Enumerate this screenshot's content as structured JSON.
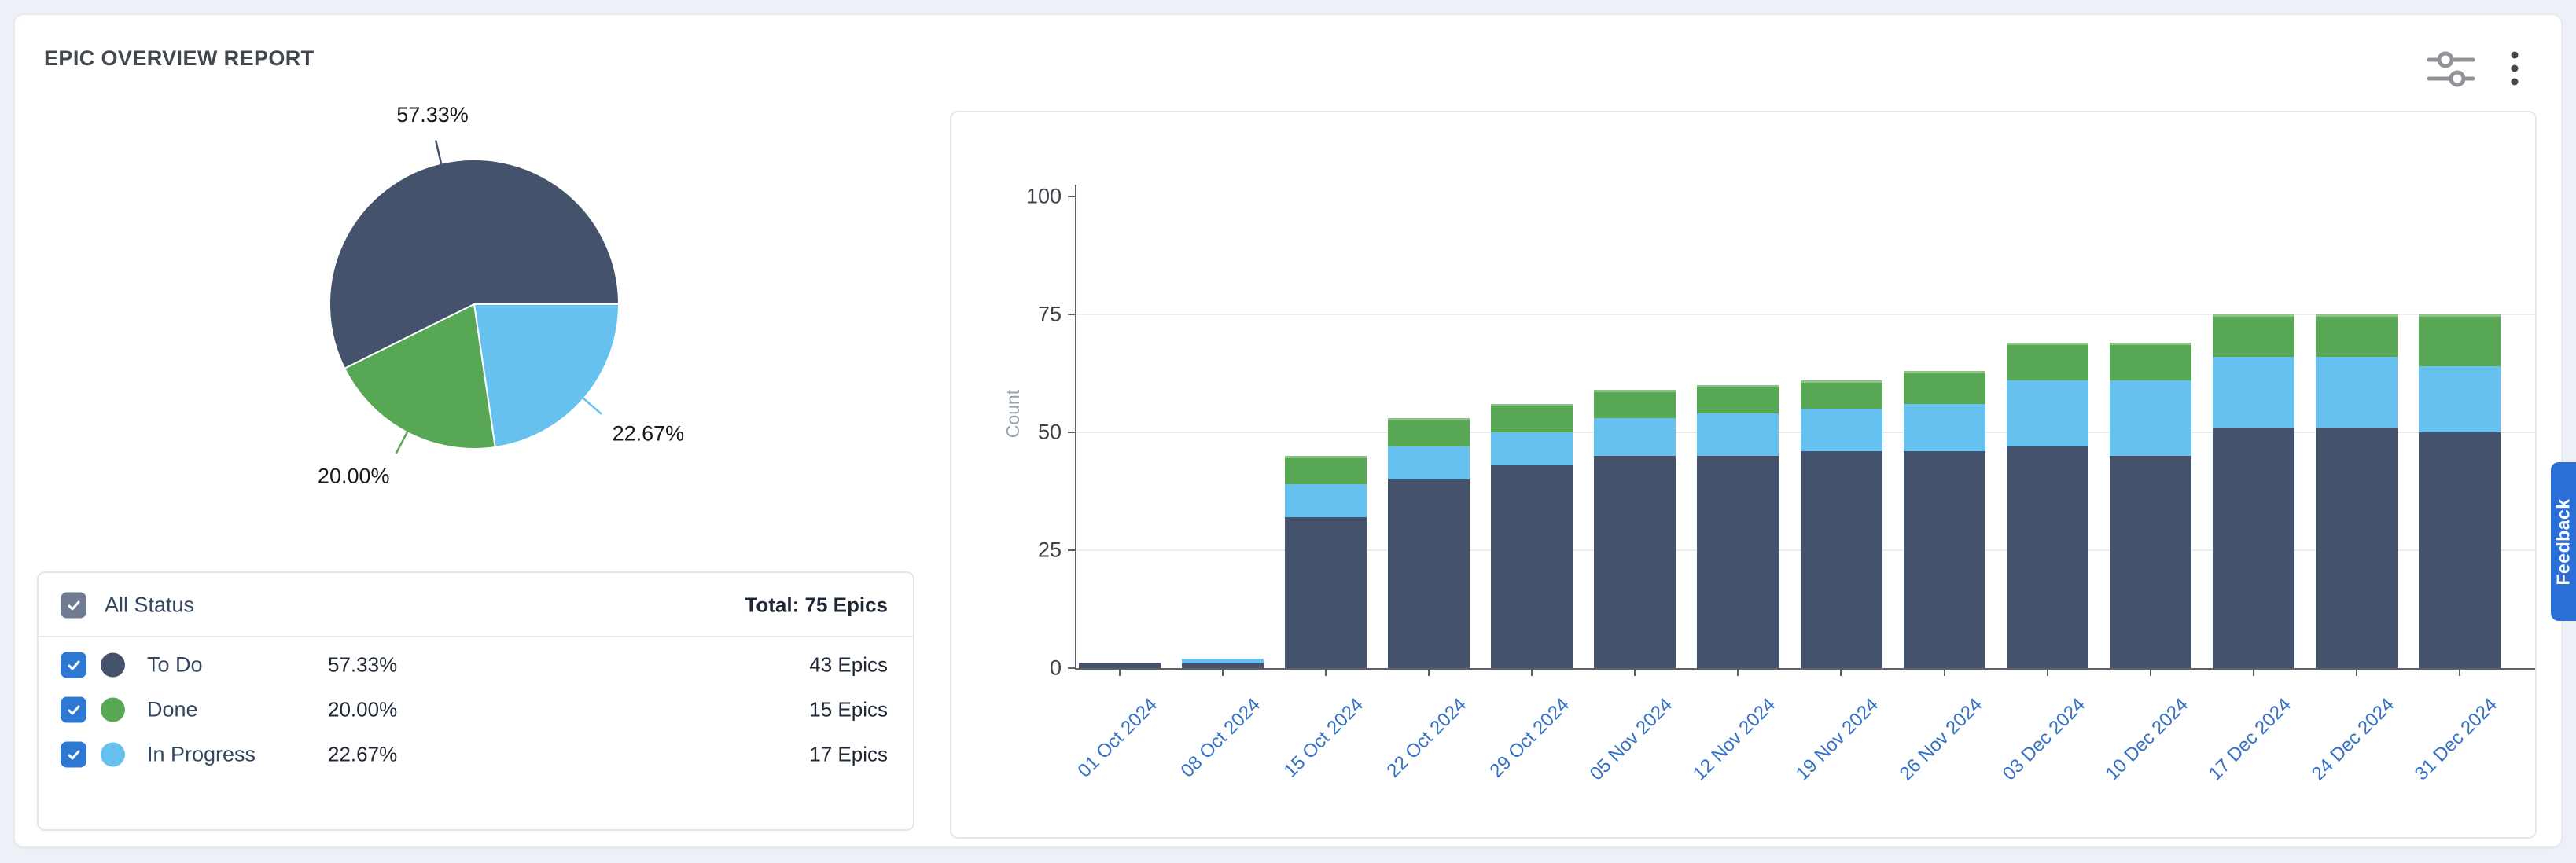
{
  "header": {
    "title": "EPIC OVERVIEW REPORT"
  },
  "toolbar": {
    "icons": [
      "sliders-icon",
      "kebab-menu-icon"
    ]
  },
  "legend": {
    "all_status_label": "All Status",
    "total_label": "Total: 75 Epics",
    "all_checkbox_color": "#6E7B90",
    "row_checkbox_color": "#2D78D2",
    "rows": [
      {
        "label": "To Do",
        "percent": "57.33%",
        "count": "43 Epics",
        "color": "#44526B"
      },
      {
        "label": "Done",
        "percent": "20.00%",
        "count": "15 Epics",
        "color": "#57A755"
      },
      {
        "label": "In Progress",
        "percent": "22.67%",
        "count": "17 Epics",
        "color": "#67C1EF"
      }
    ]
  },
  "feedback": {
    "label": "Feedback",
    "color": "#2B6FD6"
  },
  "chart_data": [
    {
      "type": "pie",
      "title": "Epic status distribution",
      "direction": "counterclockwise",
      "start_angle_deg": 0,
      "slices": [
        {
          "label": "To Do",
          "value": 57.33,
          "display": "57.33%",
          "color": "#44526B"
        },
        {
          "label": "Done",
          "value": 20.0,
          "display": "20.00%",
          "color": "#57A755"
        },
        {
          "label": "In Progress",
          "value": 22.67,
          "display": "22.67%",
          "color": "#67C1EF"
        }
      ]
    },
    {
      "type": "bar",
      "stacked": true,
      "categories": [
        "01 Oct 2024",
        "08 Oct 2024",
        "15 Oct 2024",
        "22 Oct 2024",
        "29 Oct 2024",
        "05 Nov 2024",
        "12 Nov 2024",
        "19 Nov 2024",
        "26 Nov 2024",
        "03 Dec 2024",
        "10 Dec 2024",
        "17 Dec 2024",
        "24 Dec 2024",
        "31 Dec 2024"
      ],
      "series": [
        {
          "name": "To Do",
          "color": "#44526B",
          "values": [
            1,
            1,
            32,
            40,
            43,
            45,
            45,
            46,
            46,
            47,
            45,
            51,
            51,
            50
          ]
        },
        {
          "name": "In Progress",
          "color": "#67C1EF",
          "values": [
            0,
            1,
            7,
            7,
            7,
            8,
            9,
            9,
            10,
            14,
            16,
            15,
            15,
            14
          ]
        },
        {
          "name": "Done",
          "color": "#57A755",
          "values": [
            0,
            0,
            6,
            6,
            6,
            6,
            6,
            6,
            7,
            8,
            8,
            9,
            9,
            11
          ]
        }
      ],
      "ylabel": "Count",
      "ylim": [
        0,
        100
      ],
      "yticks": [
        0,
        25,
        50,
        75,
        100
      ],
      "grid": true,
      "xlabel_color": "#3470C4",
      "legend_position": "none"
    }
  ]
}
